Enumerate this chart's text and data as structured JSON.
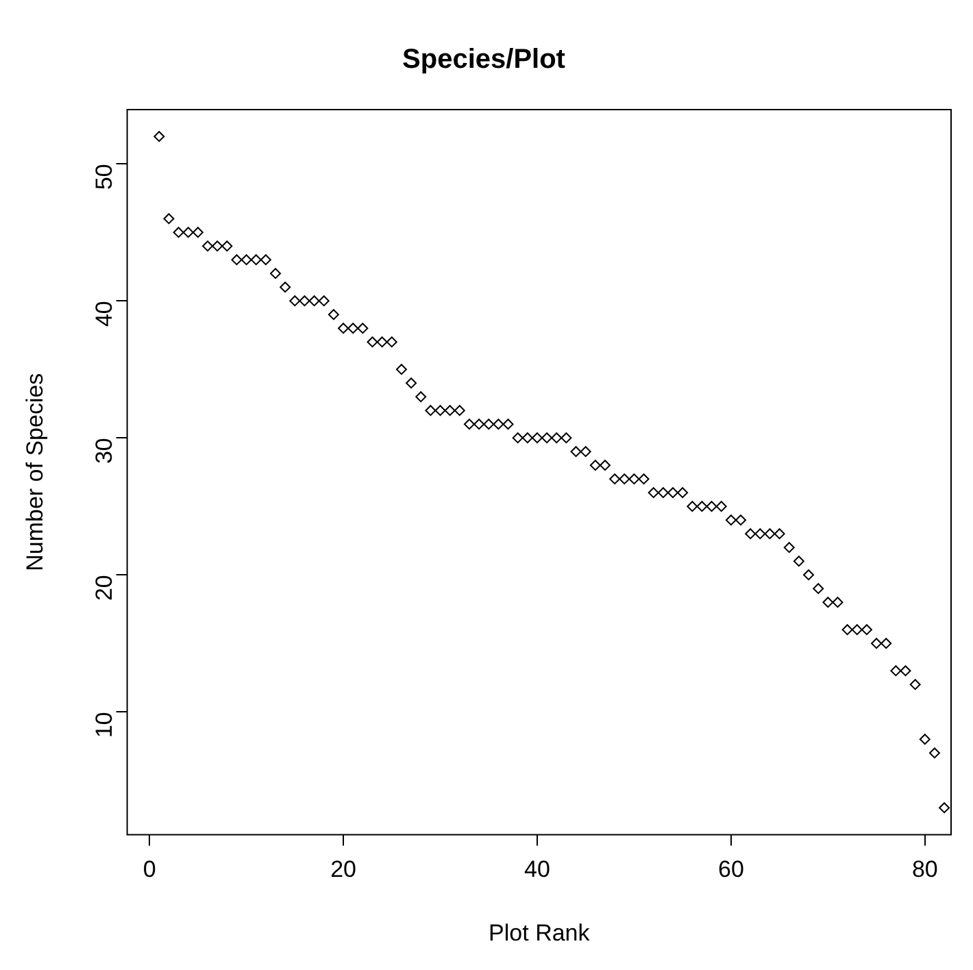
{
  "chart_data": {
    "type": "scatter",
    "title": "Species/Plot",
    "xlabel": "Plot Rank",
    "ylabel": "Number of Species",
    "x": [
      1,
      2,
      3,
      4,
      5,
      6,
      7,
      8,
      9,
      10,
      11,
      12,
      13,
      14,
      15,
      16,
      17,
      18,
      19,
      20,
      21,
      22,
      23,
      24,
      25,
      26,
      27,
      28,
      29,
      30,
      31,
      32,
      33,
      34,
      35,
      36,
      37,
      38,
      39,
      40,
      41,
      42,
      43,
      44,
      45,
      46,
      47,
      48,
      49,
      50,
      51,
      52,
      53,
      54,
      55,
      56,
      57,
      58,
      59,
      60,
      61,
      62,
      63,
      64,
      65,
      66,
      67,
      68,
      69,
      70,
      71,
      72,
      73,
      74,
      75,
      76,
      77,
      78,
      79,
      80,
      81,
      82
    ],
    "series": [
      {
        "color": "#000000",
        "values": [
          52,
          46,
          45,
          45,
          45,
          44,
          44,
          44,
          43,
          43,
          43,
          43,
          42,
          41,
          40,
          40,
          40,
          40,
          39,
          38,
          38,
          38,
          37,
          37,
          37,
          35,
          34,
          33,
          32,
          32,
          32,
          32,
          31,
          31,
          31,
          31,
          31,
          30,
          30,
          30,
          30,
          30,
          30,
          29,
          29,
          28,
          28,
          27,
          27,
          27,
          27,
          26,
          26,
          26,
          26,
          25,
          25,
          25,
          25,
          24,
          24,
          23,
          23,
          23,
          23,
          22,
          21,
          20,
          19,
          18,
          18,
          16,
          16,
          16,
          15,
          15,
          13,
          13,
          12,
          8,
          7,
          3
        ]
      }
    ],
    "xlim": [
      -2.3,
      82.7
    ],
    "xticks": [
      0,
      20,
      40,
      60,
      80
    ],
    "ylim": [
      1.04,
      53.96
    ],
    "yticks": [
      10,
      20,
      30,
      40,
      50
    ],
    "marker": "diamond",
    "grid": false,
    "legend": false
  }
}
